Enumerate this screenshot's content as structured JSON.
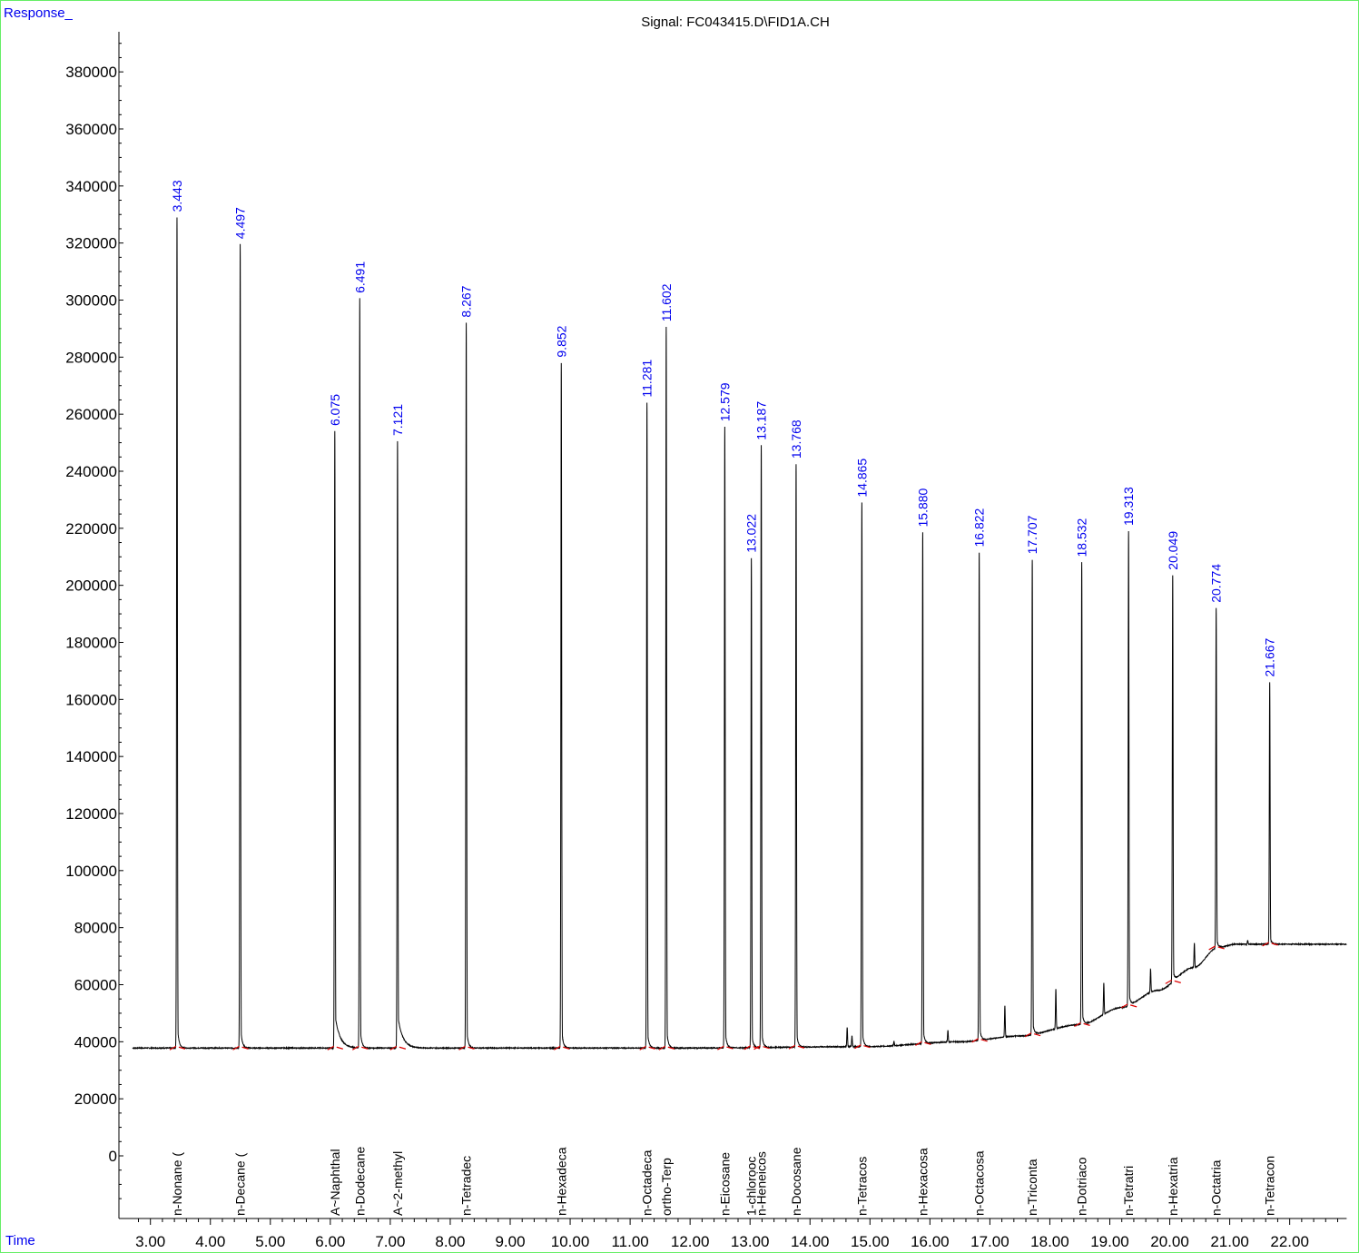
{
  "y_axis_label": "Response_",
  "x_axis_label": "Time",
  "colors": {
    "frame": "#66ee66",
    "axis_label": "#0000ee",
    "peak_label": "#0000ee",
    "trace": "#000000",
    "baseline_mark": "#dd0000"
  },
  "chart_data": {
    "type": "line",
    "title": "Signal: FC043415.D\\FID1A.CH",
    "xlabel": "Time",
    "ylabel": "Response_",
    "xlim": [
      2.7,
      22.95
    ],
    "ylim": [
      -20000,
      398000
    ],
    "x_ticks": [
      "3.00",
      "4.00",
      "5.00",
      "6.00",
      "7.00",
      "8.00",
      "9.00",
      "10.00",
      "11.00",
      "12.00",
      "13.00",
      "14.00",
      "15.00",
      "16.00",
      "17.00",
      "18.00",
      "19.00",
      "20.00",
      "21.00",
      "22.00"
    ],
    "y_ticks": [
      "0",
      "20000",
      "40000",
      "60000",
      "80000",
      "100000",
      "120000",
      "140000",
      "160000",
      "180000",
      "200000",
      "220000",
      "240000",
      "260000",
      "280000",
      "300000",
      "320000",
      "340000",
      "360000",
      "380000"
    ],
    "grid": false,
    "baseline": [
      [
        2.7,
        37800
      ],
      [
        12.0,
        37800
      ],
      [
        15.0,
        38300
      ],
      [
        16.5,
        40000
      ],
      [
        17.5,
        42000
      ],
      [
        18.5,
        46000
      ],
      [
        19.2,
        52000
      ],
      [
        19.8,
        58000
      ],
      [
        20.4,
        66000
      ],
      [
        20.8,
        73000
      ],
      [
        21.1,
        74200
      ],
      [
        22.95,
        74200
      ]
    ],
    "peaks": [
      {
        "rt": "3.443",
        "height": 329000,
        "compound": "n-Nonane ("
      },
      {
        "rt": "4.497",
        "height": 319500,
        "compound": "n-Decane ("
      },
      {
        "rt": "6.075",
        "height": 254000,
        "compound": "A~Naphthal"
      },
      {
        "rt": "6.491",
        "height": 300500,
        "compound": "n-Dodecane"
      },
      {
        "rt": "7.121",
        "height": 250500,
        "compound": "A~2-methyl"
      },
      {
        "rt": "8.267",
        "height": 292000,
        "compound": "n-Tetradec"
      },
      {
        "rt": "9.852",
        "height": 278000,
        "compound": "n-Hexadeca"
      },
      {
        "rt": "11.281",
        "height": 264000,
        "compound": "n-Octadeca"
      },
      {
        "rt": "11.602",
        "height": 290500,
        "compound": "ortho-Terp"
      },
      {
        "rt": "12.579",
        "height": 255500,
        "compound": "n-Eicosane"
      },
      {
        "rt": "13.022",
        "height": 209500,
        "compound": "1-chlorooc"
      },
      {
        "rt": "13.187",
        "height": 249000,
        "compound": "n-Heneicos"
      },
      {
        "rt": "13.768",
        "height": 242500,
        "compound": "n-Docosane"
      },
      {
        "rt": "14.865",
        "height": 229000,
        "compound": "n-Tetracos"
      },
      {
        "rt": "15.880",
        "height": 218500,
        "compound": "n-Hexacosa"
      },
      {
        "rt": "16.822",
        "height": 211500,
        "compound": "n-Octacosa"
      },
      {
        "rt": "17.707",
        "height": 209000,
        "compound": "n-Triconta"
      },
      {
        "rt": "18.532",
        "height": 208000,
        "compound": "n-Dotriaco"
      },
      {
        "rt": "19.313",
        "height": 219000,
        "compound": "n-Tetratri"
      },
      {
        "rt": "20.049",
        "height": 203500,
        "compound": "n-Hexatria"
      },
      {
        "rt": "20.774",
        "height": 192000,
        "compound": "n-Octatria"
      },
      {
        "rt": "21.667",
        "height": 166000,
        "compound": "n-Tetracon"
      }
    ],
    "minor_peaks": [
      [
        14.62,
        45000
      ],
      [
        14.7,
        42000
      ],
      [
        15.4,
        40000
      ],
      [
        16.3,
        44000
      ],
      [
        17.25,
        52500
      ],
      [
        18.1,
        58500
      ],
      [
        18.9,
        60500
      ],
      [
        19.68,
        65500
      ],
      [
        20.41,
        74500
      ],
      [
        21.3,
        75500
      ]
    ]
  }
}
